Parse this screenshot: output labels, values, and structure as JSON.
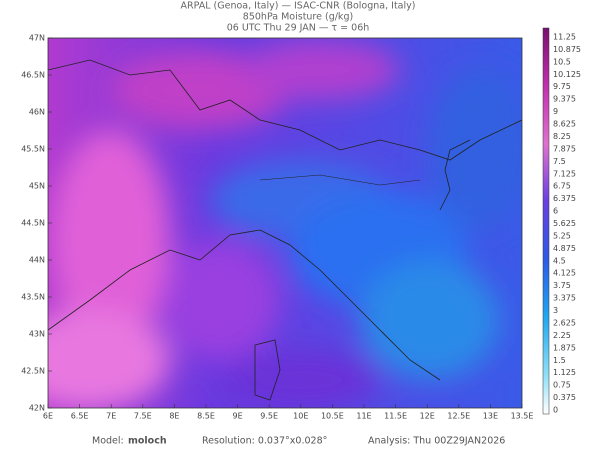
{
  "header": {
    "line1": "ARPAL (Genoa, Italy)  —  ISAC-CNR (Bologna, Italy)",
    "line2": "850hPa Moisture (g/kg)",
    "line3": "06 UTC Thu 29 JAN  —  τ = 06h"
  },
  "latitude_labels": [
    "47N",
    "46.5N",
    "46N",
    "45.5N",
    "45N",
    "44.5N",
    "44N",
    "43.5N",
    "43N",
    "42.5N",
    "42N"
  ],
  "longitude_labels": [
    "6E",
    "6.5E",
    "7E",
    "7.5E",
    "8E",
    "8.5E",
    "9E",
    "9.5E",
    "10E",
    "10.5E",
    "11E",
    "11.5E",
    "12E",
    "12.5E",
    "13E",
    "13.5E"
  ],
  "colorbar": {
    "labels": [
      "11.25",
      "10.875",
      "10.5",
      "10.125",
      "9.75",
      "9.375",
      "9",
      "8.625",
      "8.25",
      "7.875",
      "7.5",
      "7.125",
      "6.75",
      "6.375",
      "6",
      "5.625",
      "5.25",
      "4.875",
      "4.5",
      "4.125",
      "3.75",
      "3.375",
      "3",
      "2.625",
      "2.25",
      "1.875",
      "1.5",
      "1.125",
      "0.75",
      "0.375",
      "0"
    ]
  },
  "footer": {
    "model_label": "Model:",
    "model_value": "moloch",
    "resolution": "Resolution: 0.037°x0.028°",
    "analysis": "Analysis: Thu 00Z29JAN2026"
  }
}
